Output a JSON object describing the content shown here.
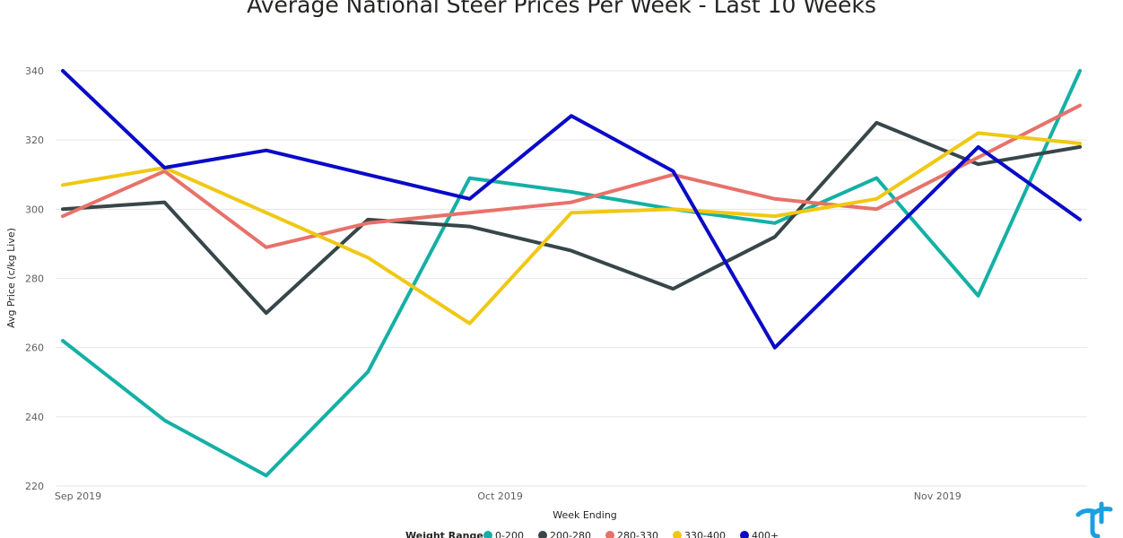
{
  "chart_data": {
    "type": "line",
    "title": "Average National Steer Prices Per Week - Last 10 Weeks",
    "xlabel": "Week Ending",
    "ylabel": "Avg Price (c/kg Live)",
    "ylim": [
      220,
      340
    ],
    "yticks": [
      "220",
      "240",
      "260",
      "280",
      "300",
      "320",
      "340"
    ],
    "xtick_labels": [
      "Sep 2019",
      "Oct 2019",
      "Nov 2019"
    ],
    "grid": true,
    "legend_position": "bottom",
    "legend_title": "Weight Range",
    "series": [
      {
        "name": "0-200",
        "color": "#14b0a5",
        "values": [
          262,
          239,
          223,
          253,
          309,
          305,
          300,
          296,
          309,
          275,
          340
        ]
      },
      {
        "name": "200-280",
        "color": "#374649",
        "values": [
          300,
          302,
          270,
          297,
          295,
          288,
          277,
          292,
          325,
          313,
          318
        ]
      },
      {
        "name": "280-330",
        "color": "#e8716a",
        "values": [
          298,
          311,
          289,
          296,
          299,
          302,
          310,
          303,
          300,
          315,
          330
        ]
      },
      {
        "name": "330-400",
        "color": "#f0c814",
        "values": [
          307,
          312,
          299,
          286,
          267,
          299,
          300,
          298,
          303,
          322,
          319
        ]
      },
      {
        "name": "400+",
        "color": "#0a0ac8",
        "values": [
          340,
          312,
          317,
          310,
          303,
          327,
          311,
          260,
          289,
          318,
          297
        ]
      }
    ]
  },
  "logo": {
    "icon": "tt-logo-icon",
    "color": "#1aa0e0"
  }
}
